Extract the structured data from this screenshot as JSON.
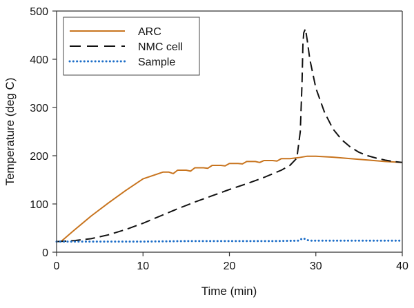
{
  "chart_data": {
    "type": "line",
    "title": "",
    "xlabel": "Time (min)",
    "ylabel": "Temperature (deg C)",
    "xlim": [
      0,
      40
    ],
    "ylim": [
      0,
      500
    ],
    "xticks": [
      0,
      10,
      20,
      30,
      40
    ],
    "yticks": [
      0,
      100,
      200,
      300,
      400,
      500
    ],
    "grid": false,
    "legend_position": "top-left",
    "series": [
      {
        "name": "ARC",
        "style": "solid",
        "color": "#c8741e",
        "x": [
          0.5,
          2,
          4,
          6,
          8,
          10,
          12.3,
          13,
          13.5,
          14,
          15,
          15.5,
          16,
          17,
          17.5,
          18,
          19,
          19.5,
          20,
          21,
          21.5,
          22,
          23,
          23.5,
          24,
          25,
          25.5,
          26,
          27,
          28,
          29,
          30,
          32,
          34,
          36,
          38,
          40
        ],
        "y": [
          22,
          45,
          75,
          102,
          128,
          152,
          166,
          166,
          163,
          170,
          170,
          168,
          175,
          175,
          174,
          180,
          180,
          179,
          184,
          184,
          183,
          188,
          188,
          186,
          190,
          190,
          189,
          194,
          194,
          196,
          199,
          199,
          197,
          194,
          191,
          188,
          186
        ]
      },
      {
        "name": "NMC cell",
        "style": "dashed",
        "color": "#111111",
        "x": [
          0,
          2,
          4,
          6,
          8,
          10,
          12,
          14,
          16,
          18,
          20,
          22,
          24,
          26,
          27,
          27.8,
          28.2,
          28.4,
          28.5,
          28.6,
          28.8,
          29.0,
          29.3,
          30,
          31,
          32,
          33,
          34,
          35,
          36,
          37,
          38,
          39,
          40
        ],
        "y": [
          22,
          24,
          28,
          36,
          47,
          60,
          75,
          90,
          104,
          117,
          130,
          142,
          155,
          170,
          180,
          195,
          250,
          350,
          430,
          455,
          463,
          440,
          400,
          340,
          290,
          255,
          233,
          218,
          207,
          200,
          195,
          191,
          188,
          186
        ]
      },
      {
        "name": "Sample",
        "style": "dotted",
        "color": "#1f6fc8",
        "x": [
          0,
          5,
          10,
          15,
          20,
          25,
          28,
          28.5,
          28.8,
          29.2,
          30,
          35,
          40
        ],
        "y": [
          22,
          22,
          22,
          23,
          23,
          23,
          24,
          29,
          27,
          24,
          24,
          24,
          24
        ]
      }
    ]
  }
}
